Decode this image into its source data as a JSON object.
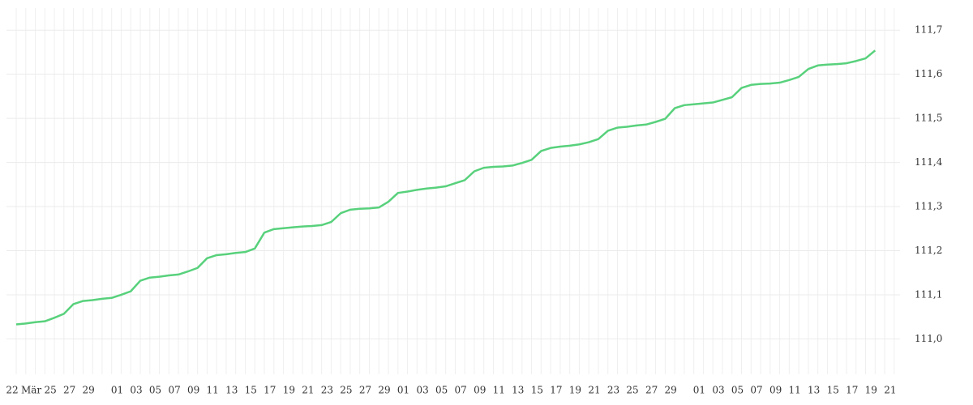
{
  "chart_data": {
    "type": "line",
    "color": "#58d17c",
    "grid": true,
    "categories": [
      "22",
      null,
      "Mär",
      null,
      "25",
      null,
      "27",
      null,
      "29",
      null,
      null,
      "01",
      null,
      "03",
      null,
      "05",
      null,
      "07",
      null,
      "09",
      null,
      "11",
      null,
      "13",
      null,
      "15",
      null,
      "17",
      null,
      "19",
      null,
      "21",
      null,
      "23",
      null,
      "25",
      null,
      "27",
      null,
      "29",
      null,
      "01",
      null,
      "03",
      null,
      "05",
      null,
      "07",
      null,
      "09",
      null,
      "11",
      null,
      "13",
      null,
      "15",
      null,
      "17",
      null,
      "19",
      null,
      "21",
      null,
      "23",
      null,
      "25",
      null,
      "27",
      null,
      "29",
      null,
      null,
      "01",
      null,
      "03",
      null,
      "05",
      null,
      "07",
      null,
      "09",
      null,
      "11",
      null,
      "13",
      null,
      "15",
      null,
      "17",
      null,
      "19",
      null,
      "21"
    ],
    "values": [
      111.033,
      111.035,
      111.038,
      111.04,
      111.048,
      111.057,
      111.079,
      111.086,
      111.088,
      111.091,
      111.093,
      111.1,
      111.108,
      111.132,
      111.139,
      111.141,
      111.144,
      111.146,
      111.153,
      111.161,
      111.183,
      111.19,
      111.192,
      111.195,
      111.197,
      111.205,
      111.241,
      111.249,
      111.251,
      111.253,
      111.255,
      111.256,
      111.258,
      111.265,
      111.285,
      111.293,
      111.295,
      111.296,
      111.298,
      111.311,
      111.331,
      111.334,
      111.338,
      111.341,
      111.343,
      111.346,
      111.353,
      111.36,
      111.38,
      111.388,
      111.39,
      111.391,
      111.393,
      111.399,
      111.406,
      111.426,
      111.433,
      111.436,
      111.438,
      111.441,
      111.446,
      111.453,
      111.472,
      111.479,
      111.481,
      111.484,
      111.486,
      111.492,
      111.499,
      111.523,
      111.53,
      111.532,
      111.534,
      111.536,
      111.542,
      111.548,
      111.569,
      111.576,
      111.578,
      111.579,
      111.581,
      111.587,
      111.594,
      111.612,
      111.62,
      111.622,
      111.623,
      111.625,
      111.63,
      111.636,
      111.654,
      null,
      null
    ],
    "ylim": [
      110.92,
      111.75
    ],
    "yticks": [
      {
        "value": 111.0,
        "label": "111,0"
      },
      {
        "value": 111.1,
        "label": "111,1"
      },
      {
        "value": 111.2,
        "label": "111,2"
      },
      {
        "value": 111.3,
        "label": "111,3"
      },
      {
        "value": 111.4,
        "label": "111,4"
      },
      {
        "value": 111.5,
        "label": "111,5"
      },
      {
        "value": 111.6,
        "label": "111,6"
      },
      {
        "value": 111.7,
        "label": "111,7"
      }
    ]
  }
}
